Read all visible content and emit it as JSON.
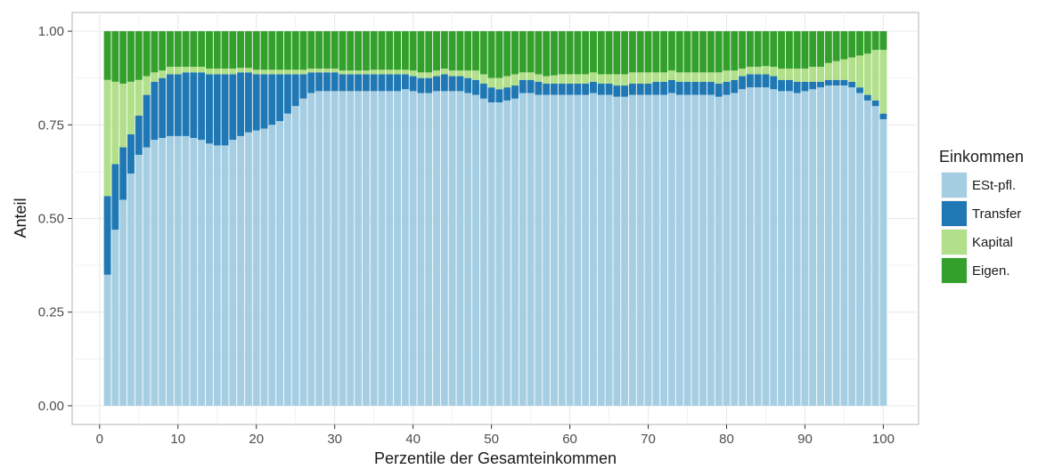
{
  "chart_data": {
    "type": "bar",
    "stacked": true,
    "xlabel": "Perzentile der Gesamteinkommen",
    "ylabel": "Anteil",
    "xlim": [
      -3.5,
      104.5
    ],
    "ylim": [
      -0.05,
      1.05
    ],
    "x_ticks": [
      0,
      10,
      20,
      30,
      40,
      50,
      60,
      70,
      80,
      90,
      100
    ],
    "y_ticks": [
      0.0,
      0.25,
      0.5,
      0.75,
      1.0
    ],
    "y_tick_labels": [
      "0.00",
      "0.25",
      "0.50",
      "0.75",
      "1.00"
    ],
    "grid": true,
    "legend": {
      "title": "Einkommen",
      "position": "right",
      "entries": [
        "ESt-pfl.",
        "Transfer",
        "Kapital",
        "Eigen."
      ]
    },
    "colors": {
      "ESt-pfl.": "#a6cee3",
      "Transfer": "#1f78b4",
      "Kapital": "#b2df8a",
      "Eigen.": "#33a02c"
    },
    "x": [
      1,
      2,
      3,
      4,
      5,
      6,
      7,
      8,
      9,
      10,
      11,
      12,
      13,
      14,
      15,
      16,
      17,
      18,
      19,
      20,
      21,
      22,
      23,
      24,
      25,
      26,
      27,
      28,
      29,
      30,
      31,
      32,
      33,
      34,
      35,
      36,
      37,
      38,
      39,
      40,
      41,
      42,
      43,
      44,
      45,
      46,
      47,
      48,
      49,
      50,
      51,
      52,
      53,
      54,
      55,
      56,
      57,
      58,
      59,
      60,
      61,
      62,
      63,
      64,
      65,
      66,
      67,
      68,
      69,
      70,
      71,
      72,
      73,
      74,
      75,
      76,
      77,
      78,
      79,
      80,
      81,
      82,
      83,
      84,
      85,
      86,
      87,
      88,
      89,
      90,
      91,
      92,
      93,
      94,
      95,
      96,
      97,
      98,
      99,
      100
    ],
    "series": [
      {
        "name": "ESt-pfl.",
        "values": [
          0.35,
          0.47,
          0.55,
          0.62,
          0.67,
          0.69,
          0.71,
          0.715,
          0.72,
          0.72,
          0.72,
          0.715,
          0.71,
          0.7,
          0.695,
          0.695,
          0.71,
          0.72,
          0.73,
          0.735,
          0.74,
          0.75,
          0.76,
          0.78,
          0.8,
          0.82,
          0.835,
          0.84,
          0.84,
          0.84,
          0.84,
          0.84,
          0.84,
          0.84,
          0.84,
          0.84,
          0.84,
          0.84,
          0.845,
          0.84,
          0.835,
          0.835,
          0.84,
          0.84,
          0.84,
          0.84,
          0.835,
          0.83,
          0.82,
          0.81,
          0.81,
          0.815,
          0.82,
          0.835,
          0.835,
          0.83,
          0.83,
          0.83,
          0.83,
          0.83,
          0.83,
          0.83,
          0.835,
          0.83,
          0.83,
          0.825,
          0.825,
          0.83,
          0.83,
          0.83,
          0.83,
          0.83,
          0.835,
          0.83,
          0.83,
          0.83,
          0.83,
          0.83,
          0.825,
          0.83,
          0.835,
          0.845,
          0.85,
          0.85,
          0.85,
          0.845,
          0.84,
          0.84,
          0.835,
          0.84,
          0.845,
          0.85,
          0.855,
          0.855,
          0.855,
          0.85,
          0.835,
          0.815,
          0.8,
          0.765
        ]
      },
      {
        "name": "Transfer",
        "values": [
          0.21,
          0.175,
          0.14,
          0.105,
          0.105,
          0.14,
          0.155,
          0.16,
          0.165,
          0.165,
          0.17,
          0.175,
          0.18,
          0.185,
          0.19,
          0.19,
          0.175,
          0.17,
          0.16,
          0.15,
          0.145,
          0.135,
          0.125,
          0.105,
          0.085,
          0.065,
          0.055,
          0.05,
          0.05,
          0.05,
          0.045,
          0.045,
          0.045,
          0.045,
          0.045,
          0.045,
          0.045,
          0.045,
          0.04,
          0.04,
          0.04,
          0.04,
          0.04,
          0.045,
          0.04,
          0.04,
          0.04,
          0.04,
          0.04,
          0.04,
          0.035,
          0.035,
          0.035,
          0.035,
          0.035,
          0.035,
          0.03,
          0.03,
          0.03,
          0.03,
          0.03,
          0.03,
          0.03,
          0.03,
          0.03,
          0.03,
          0.03,
          0.03,
          0.03,
          0.03,
          0.035,
          0.035,
          0.035,
          0.035,
          0.035,
          0.035,
          0.035,
          0.035,
          0.035,
          0.035,
          0.035,
          0.035,
          0.035,
          0.035,
          0.035,
          0.035,
          0.03,
          0.03,
          0.03,
          0.025,
          0.02,
          0.015,
          0.015,
          0.015,
          0.015,
          0.015,
          0.015,
          0.015,
          0.015,
          0.015
        ]
      },
      {
        "name": "Kapital",
        "values": [
          0.31,
          0.22,
          0.17,
          0.14,
          0.095,
          0.05,
          0.025,
          0.02,
          0.02,
          0.02,
          0.015,
          0.015,
          0.015,
          0.015,
          0.015,
          0.015,
          0.015,
          0.012,
          0.012,
          0.012,
          0.012,
          0.012,
          0.012,
          0.012,
          0.012,
          0.012,
          0.01,
          0.01,
          0.01,
          0.01,
          0.01,
          0.01,
          0.01,
          0.01,
          0.012,
          0.012,
          0.012,
          0.012,
          0.012,
          0.015,
          0.015,
          0.015,
          0.015,
          0.015,
          0.015,
          0.015,
          0.02,
          0.025,
          0.025,
          0.025,
          0.03,
          0.03,
          0.03,
          0.02,
          0.02,
          0.02,
          0.02,
          0.022,
          0.025,
          0.025,
          0.025,
          0.025,
          0.025,
          0.025,
          0.025,
          0.03,
          0.03,
          0.03,
          0.03,
          0.03,
          0.025,
          0.025,
          0.025,
          0.025,
          0.025,
          0.025,
          0.025,
          0.025,
          0.03,
          0.03,
          0.025,
          0.02,
          0.02,
          0.02,
          0.022,
          0.025,
          0.03,
          0.03,
          0.035,
          0.035,
          0.04,
          0.04,
          0.045,
          0.05,
          0.055,
          0.065,
          0.085,
          0.11,
          0.135,
          0.17
        ]
      },
      {
        "name": "Eigen.",
        "values": [
          0.13,
          0.135,
          0.14,
          0.135,
          0.13,
          0.12,
          0.11,
          0.105,
          0.095,
          0.095,
          0.095,
          0.095,
          0.095,
          0.1,
          0.1,
          0.1,
          0.1,
          0.098,
          0.098,
          0.103,
          0.103,
          0.103,
          0.103,
          0.103,
          0.103,
          0.103,
          0.1,
          0.1,
          0.1,
          0.1,
          0.105,
          0.105,
          0.105,
          0.105,
          0.103,
          0.103,
          0.103,
          0.103,
          0.103,
          0.105,
          0.11,
          0.11,
          0.105,
          0.1,
          0.105,
          0.105,
          0.105,
          0.105,
          0.115,
          0.125,
          0.125,
          0.12,
          0.115,
          0.11,
          0.11,
          0.115,
          0.12,
          0.118,
          0.115,
          0.115,
          0.115,
          0.115,
          0.11,
          0.115,
          0.115,
          0.115,
          0.115,
          0.11,
          0.11,
          0.11,
          0.11,
          0.11,
          0.105,
          0.11,
          0.11,
          0.11,
          0.11,
          0.11,
          0.11,
          0.105,
          0.105,
          0.1,
          0.095,
          0.095,
          0.093,
          0.095,
          0.1,
          0.1,
          0.1,
          0.1,
          0.095,
          0.095,
          0.085,
          0.08,
          0.075,
          0.07,
          0.065,
          0.06,
          0.05,
          0.05
        ]
      }
    ]
  }
}
